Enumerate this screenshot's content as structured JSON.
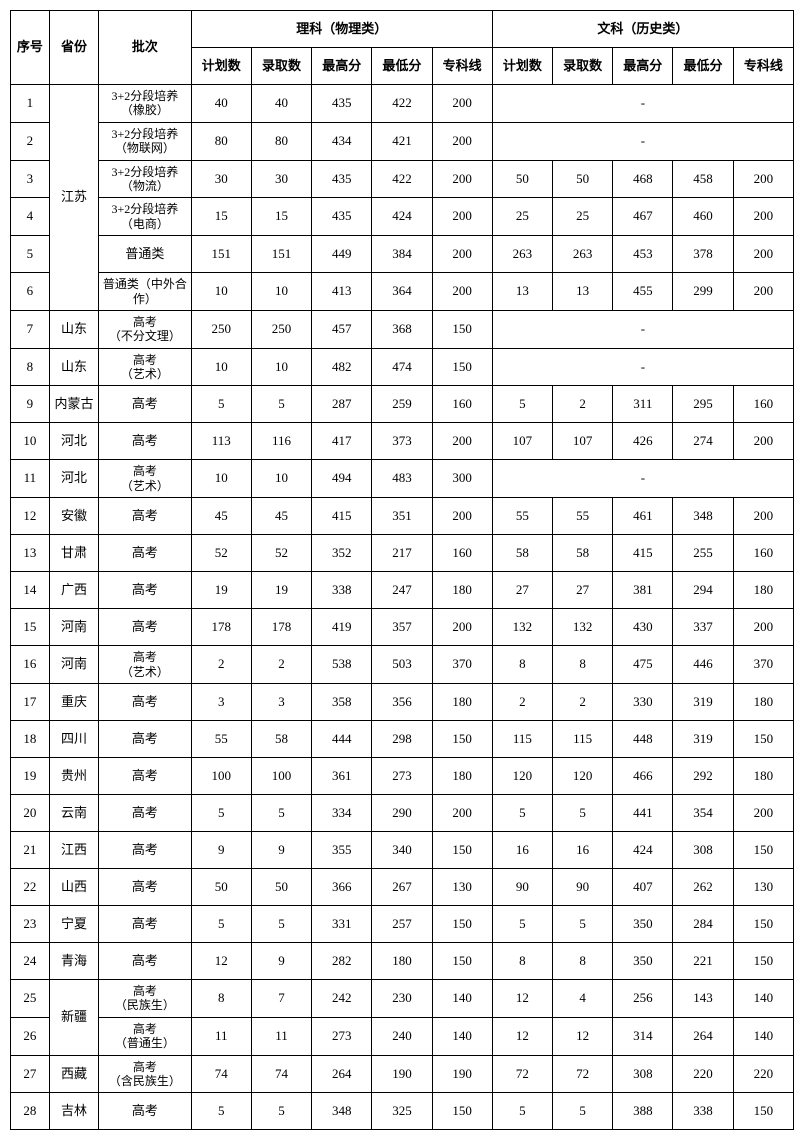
{
  "headers": {
    "seq": "序号",
    "province": "省份",
    "batch": "批次",
    "science": "理科（物理类）",
    "arts": "文科（历史类）",
    "plan": "计划数",
    "admit": "录取数",
    "max": "最高分",
    "min": "最低分",
    "line": "专科线"
  },
  "rows": [
    {
      "seq": "1",
      "province": "江苏",
      "province_rowspan": 6,
      "batch": "3+2分段培养\n（橡胶）",
      "s": [
        "40",
        "40",
        "435",
        "422",
        "200"
      ],
      "a_dash": true
    },
    {
      "seq": "2",
      "batch": "3+2分段培养\n（物联网）",
      "s": [
        "80",
        "80",
        "434",
        "421",
        "200"
      ],
      "a_dash": true
    },
    {
      "seq": "3",
      "batch": "3+2分段培养\n（物流）",
      "s": [
        "30",
        "30",
        "435",
        "422",
        "200"
      ],
      "a": [
        "50",
        "50",
        "468",
        "458",
        "200"
      ]
    },
    {
      "seq": "4",
      "batch": "3+2分段培养\n（电商）",
      "s": [
        "15",
        "15",
        "435",
        "424",
        "200"
      ],
      "a": [
        "25",
        "25",
        "467",
        "460",
        "200"
      ]
    },
    {
      "seq": "5",
      "batch": "普通类",
      "s": [
        "151",
        "151",
        "449",
        "384",
        "200"
      ],
      "a": [
        "263",
        "263",
        "453",
        "378",
        "200"
      ]
    },
    {
      "seq": "6",
      "batch": "普通类（中外合\n作）",
      "s": [
        "10",
        "10",
        "413",
        "364",
        "200"
      ],
      "a": [
        "13",
        "13",
        "455",
        "299",
        "200"
      ]
    },
    {
      "seq": "7",
      "province": "山东",
      "batch": "高考\n（不分文理）",
      "s": [
        "250",
        "250",
        "457",
        "368",
        "150"
      ],
      "a_dash": true
    },
    {
      "seq": "8",
      "province": "山东",
      "batch": "高考\n（艺术）",
      "s": [
        "10",
        "10",
        "482",
        "474",
        "150"
      ],
      "a_dash": true
    },
    {
      "seq": "9",
      "province": "内蒙古",
      "batch": "高考",
      "s": [
        "5",
        "5",
        "287",
        "259",
        "160"
      ],
      "a": [
        "5",
        "2",
        "311",
        "295",
        "160"
      ]
    },
    {
      "seq": "10",
      "province": "河北",
      "batch": "高考",
      "s": [
        "113",
        "116",
        "417",
        "373",
        "200"
      ],
      "a": [
        "107",
        "107",
        "426",
        "274",
        "200"
      ]
    },
    {
      "seq": "11",
      "province": "河北",
      "batch": "高考\n（艺术）",
      "s": [
        "10",
        "10",
        "494",
        "483",
        "300"
      ],
      "a_dash": true
    },
    {
      "seq": "12",
      "province": "安徽",
      "batch": "高考",
      "s": [
        "45",
        "45",
        "415",
        "351",
        "200"
      ],
      "a": [
        "55",
        "55",
        "461",
        "348",
        "200"
      ]
    },
    {
      "seq": "13",
      "province": "甘肃",
      "batch": "高考",
      "s": [
        "52",
        "52",
        "352",
        "217",
        "160"
      ],
      "a": [
        "58",
        "58",
        "415",
        "255",
        "160"
      ]
    },
    {
      "seq": "14",
      "province": "广西",
      "batch": "高考",
      "s": [
        "19",
        "19",
        "338",
        "247",
        "180"
      ],
      "a": [
        "27",
        "27",
        "381",
        "294",
        "180"
      ]
    },
    {
      "seq": "15",
      "province": "河南",
      "batch": "高考",
      "s": [
        "178",
        "178",
        "419",
        "357",
        "200"
      ],
      "a": [
        "132",
        "132",
        "430",
        "337",
        "200"
      ]
    },
    {
      "seq": "16",
      "province": "河南",
      "batch": "高考\n（艺术）",
      "s": [
        "2",
        "2",
        "538",
        "503",
        "370"
      ],
      "a": [
        "8",
        "8",
        "475",
        "446",
        "370"
      ]
    },
    {
      "seq": "17",
      "province": "重庆",
      "batch": "高考",
      "s": [
        "3",
        "3",
        "358",
        "356",
        "180"
      ],
      "a": [
        "2",
        "2",
        "330",
        "319",
        "180"
      ]
    },
    {
      "seq": "18",
      "province": "四川",
      "batch": "高考",
      "s": [
        "55",
        "58",
        "444",
        "298",
        "150"
      ],
      "a": [
        "115",
        "115",
        "448",
        "319",
        "150"
      ]
    },
    {
      "seq": "19",
      "province": "贵州",
      "batch": "高考",
      "s": [
        "100",
        "100",
        "361",
        "273",
        "180"
      ],
      "a": [
        "120",
        "120",
        "466",
        "292",
        "180"
      ]
    },
    {
      "seq": "20",
      "province": "云南",
      "batch": "高考",
      "s": [
        "5",
        "5",
        "334",
        "290",
        "200"
      ],
      "a": [
        "5",
        "5",
        "441",
        "354",
        "200"
      ]
    },
    {
      "seq": "21",
      "province": "江西",
      "batch": "高考",
      "s": [
        "9",
        "9",
        "355",
        "340",
        "150"
      ],
      "a": [
        "16",
        "16",
        "424",
        "308",
        "150"
      ]
    },
    {
      "seq": "22",
      "province": "山西",
      "batch": "高考",
      "s": [
        "50",
        "50",
        "366",
        "267",
        "130"
      ],
      "a": [
        "90",
        "90",
        "407",
        "262",
        "130"
      ]
    },
    {
      "seq": "23",
      "province": "宁夏",
      "batch": "高考",
      "s": [
        "5",
        "5",
        "331",
        "257",
        "150"
      ],
      "a": [
        "5",
        "5",
        "350",
        "284",
        "150"
      ]
    },
    {
      "seq": "24",
      "province": "青海",
      "batch": "高考",
      "s": [
        "12",
        "9",
        "282",
        "180",
        "150"
      ],
      "a": [
        "8",
        "8",
        "350",
        "221",
        "150"
      ]
    },
    {
      "seq": "25",
      "province": "新疆",
      "province_rowspan": 2,
      "batch": "高考\n（民族生）",
      "s": [
        "8",
        "7",
        "242",
        "230",
        "140"
      ],
      "a": [
        "12",
        "4",
        "256",
        "143",
        "140"
      ]
    },
    {
      "seq": "26",
      "batch": "高考\n（普通生）",
      "s": [
        "11",
        "11",
        "273",
        "240",
        "140"
      ],
      "a": [
        "12",
        "12",
        "314",
        "264",
        "140"
      ]
    },
    {
      "seq": "27",
      "province": "西藏",
      "batch": "高考\n（含民族生）",
      "s": [
        "74",
        "74",
        "264",
        "190",
        "190"
      ],
      "a": [
        "72",
        "72",
        "308",
        "220",
        "220"
      ]
    },
    {
      "seq": "28",
      "province": "吉林",
      "batch": "高考",
      "s": [
        "5",
        "5",
        "348",
        "325",
        "150"
      ],
      "a": [
        "5",
        "5",
        "388",
        "338",
        "150"
      ]
    }
  ]
}
